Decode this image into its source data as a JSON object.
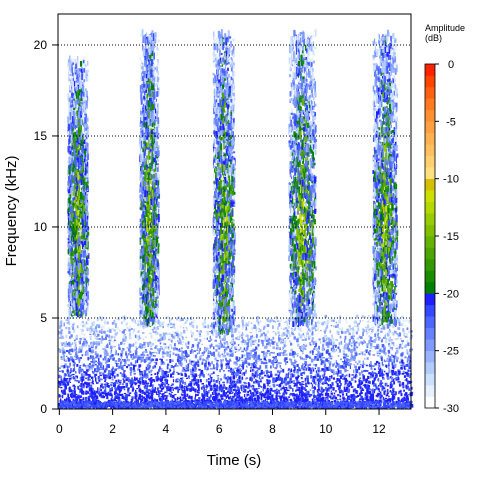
{
  "chart_data": {
    "type": "heatmap",
    "xlabel": "Time (s)",
    "ylabel": "Frequency (kHz)",
    "xlim": [
      -0.05,
      13.2
    ],
    "ylim": [
      0,
      21.7
    ],
    "xticks": [
      0,
      2,
      4,
      6,
      8,
      10,
      12
    ],
    "yticks": [
      0,
      5,
      10,
      15,
      20
    ],
    "grid": "dotted horizontal at 5, 10, 15, 20 kHz",
    "colorbar": {
      "title": "Amplitude\n(dB)",
      "range": [
        -30,
        0
      ],
      "ticks": [
        0,
        -5,
        -10,
        -15,
        -20,
        -25,
        -30
      ],
      "bands": [
        {
          "from": -30,
          "to": -20,
          "colors": [
            "#ffffff",
            "#e6f0ff",
            "#cce0ff",
            "#b3ccff",
            "#99b3ff",
            "#7f99ff",
            "#6680ff",
            "#4d66ff",
            "#3349ff",
            "#1f1fff"
          ]
        },
        {
          "from": -20,
          "to": -10,
          "colors": [
            "#008000",
            "#1a8c00",
            "#339900",
            "#4da600",
            "#66b200",
            "#80bf00",
            "#99cc00",
            "#b3d900",
            "#cce000",
            "#d4c000"
          ]
        },
        {
          "from": -10,
          "to": 0,
          "colors": [
            "#ffe080",
            "#ffd070",
            "#ffc060",
            "#ffb050",
            "#ffa040",
            "#ff9030",
            "#ff7a20",
            "#ff6010",
            "#ff4400",
            "#ff2200"
          ]
        }
      ]
    },
    "calls": [
      {
        "start": 0.3,
        "end": 1.05,
        "fmin": 5.0,
        "fmax": 19.0
      },
      {
        "start": 3.0,
        "end": 3.7,
        "fmin": 4.5,
        "fmax": 20.5
      },
      {
        "start": 5.75,
        "end": 6.55,
        "fmin": 4.0,
        "fmax": 20.5
      },
      {
        "start": 8.6,
        "end": 9.6,
        "fmin": 4.5,
        "fmax": 20.5
      },
      {
        "start": 11.75,
        "end": 12.65,
        "fmin": 4.5,
        "fmax": 20.5
      }
    ],
    "noise_band": {
      "fmin": 0,
      "fmax": 5.0
    }
  }
}
